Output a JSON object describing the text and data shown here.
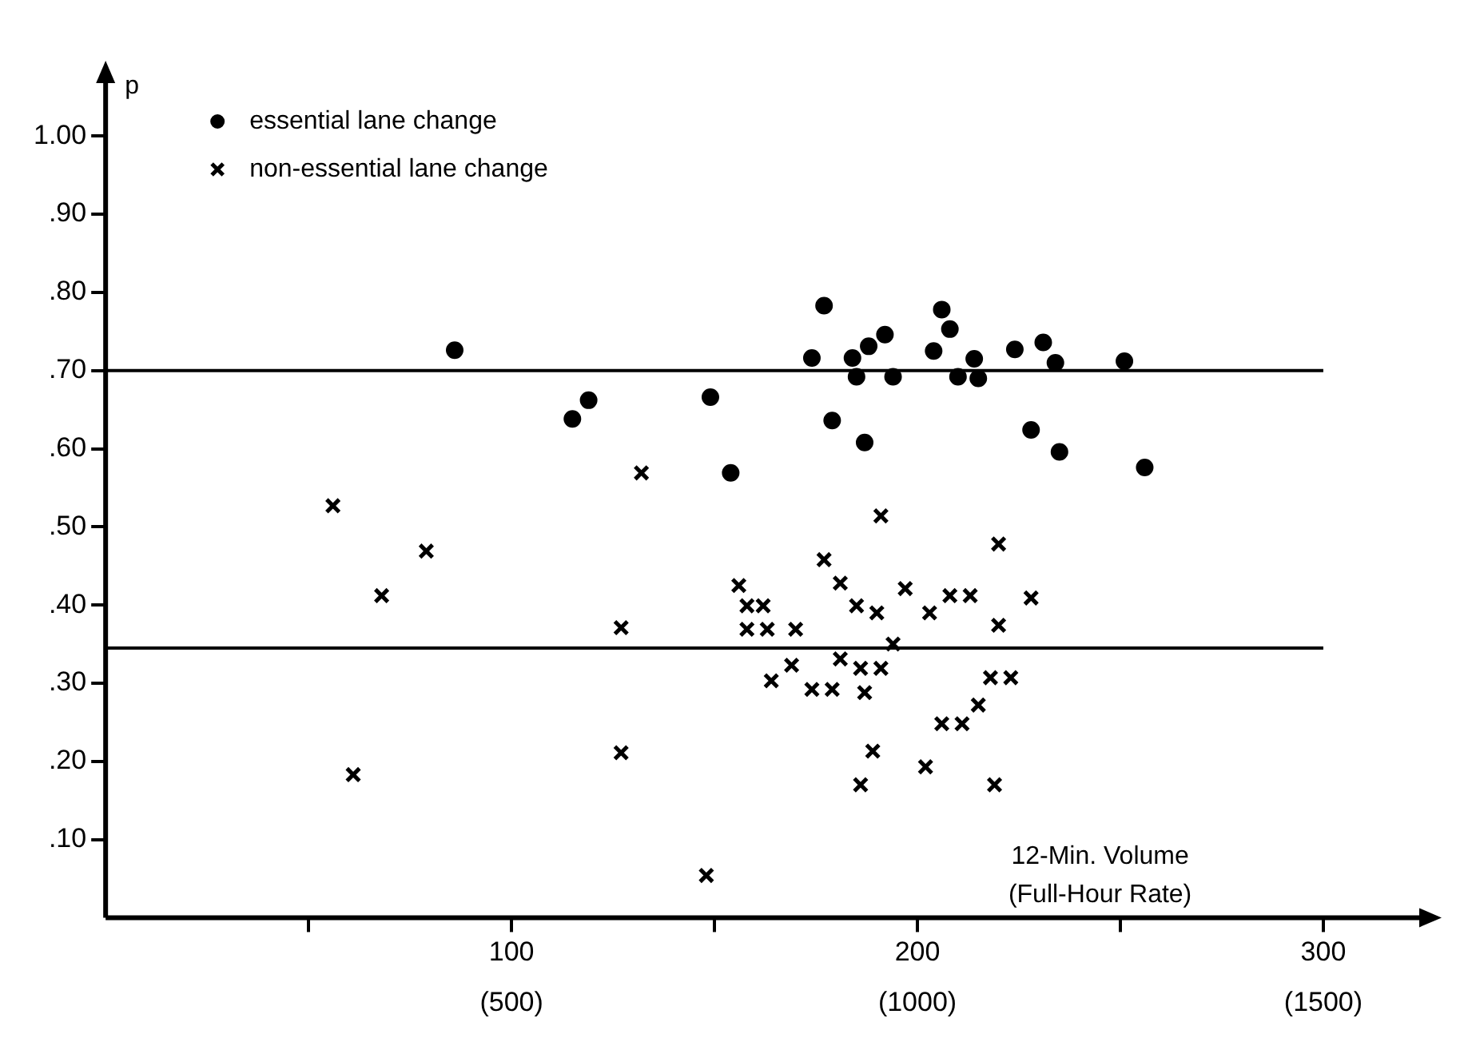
{
  "chart_data": {
    "type": "scatter",
    "ylabel": "p",
    "xlabel": "12-Min. Volume\n(Full-Hour Rate)",
    "xlim": [
      0,
      326
    ],
    "ylim": [
      0,
      1.08
    ],
    "xticks": [
      {
        "value": 50,
        "label": null
      },
      100,
      {
        "value": 150,
        "label": null
      },
      200,
      {
        "value": 250,
        "label": null
      },
      300
    ],
    "x2lim": [
      0,
      1630
    ],
    "x2ticks": [
      {
        "value": 500,
        "label": "(500)"
      },
      {
        "value": 1000,
        "label": "(1000)"
      },
      {
        "value": 1500,
        "label": "(1500)"
      }
    ],
    "yticks": [
      {
        "value": 0.1,
        "label": ".10"
      },
      {
        "value": 0.2,
        "label": ".20"
      },
      {
        "value": 0.3,
        "label": ".30"
      },
      {
        "value": 0.4,
        "label": ".40"
      },
      {
        "value": 0.5,
        "label": ".50"
      },
      {
        "value": 0.6,
        "label": ".60"
      },
      {
        "value": 0.7,
        "label": ".70"
      },
      {
        "value": 0.8,
        "label": ".80"
      },
      {
        "value": 0.9,
        "label": ".90"
      },
      {
        "value": 1.0,
        "label": "1.00"
      }
    ],
    "grid": false,
    "legend": "top left",
    "ref_lines": [
      {
        "axis": "y",
        "value": 0.7,
        "color": "#000000"
      },
      {
        "axis": "y",
        "value": 0.345,
        "color": "#000000"
      }
    ],
    "series": [
      {
        "name": "essential lane change",
        "color": "#000000",
        "marker": "circle",
        "x": [
          86,
          119,
          115,
          149,
          154,
          174,
          177,
          179,
          184,
          185,
          187,
          188,
          192,
          194,
          204,
          206,
          208,
          210,
          214,
          215,
          224,
          228,
          231,
          234,
          235,
          251,
          256
        ],
        "values": [
          0.726,
          0.662,
          0.638,
          0.666,
          0.569,
          0.716,
          0.783,
          0.636,
          0.716,
          0.692,
          0.608,
          0.731,
          0.746,
          0.692,
          0.725,
          0.778,
          0.753,
          0.692,
          0.715,
          0.69,
          0.727,
          0.624,
          0.736,
          0.71,
          0.596,
          0.712,
          0.576
        ]
      },
      {
        "name": "non-essential lane change",
        "color": "#000000",
        "marker": "cross",
        "x": [
          56,
          61,
          68,
          79,
          127,
          127,
          132,
          148,
          191,
          177,
          220,
          156,
          181,
          158,
          162,
          185,
          190,
          197,
          203,
          208,
          213,
          228,
          220,
          158,
          163,
          170,
          194,
          181,
          169,
          164,
          186,
          191,
          174,
          179,
          187,
          218,
          223,
          215,
          206,
          211,
          189,
          202,
          186,
          219
        ],
        "values": [
          0.527,
          0.183,
          0.412,
          0.469,
          0.371,
          0.211,
          0.569,
          0.054,
          0.514,
          0.458,
          0.478,
          0.425,
          0.428,
          0.399,
          0.399,
          0.399,
          0.39,
          0.421,
          0.39,
          0.412,
          0.412,
          0.409,
          0.374,
          0.369,
          0.369,
          0.369,
          0.35,
          0.331,
          0.323,
          0.303,
          0.319,
          0.319,
          0.292,
          0.292,
          0.288,
          0.307,
          0.307,
          0.272,
          0.248,
          0.248,
          0.213,
          0.193,
          0.17,
          0.17
        ]
      }
    ]
  }
}
